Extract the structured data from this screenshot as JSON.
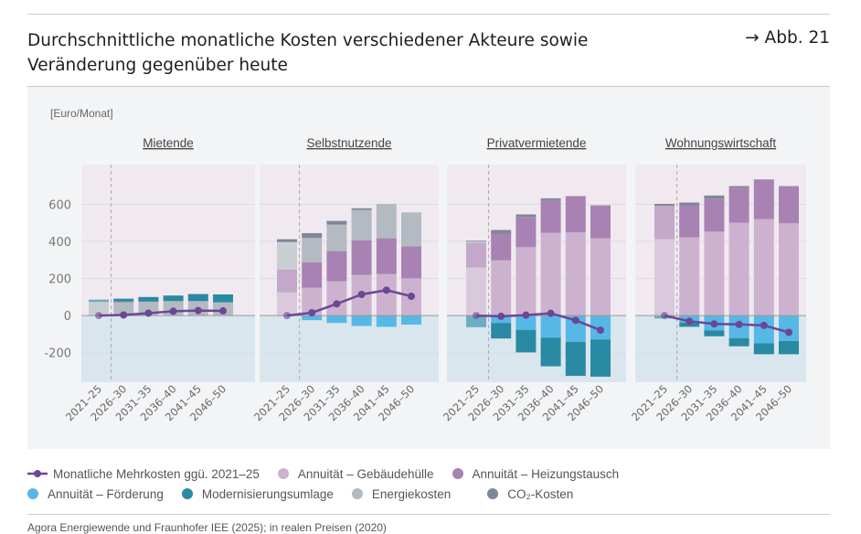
{
  "header": {
    "title": "Durchschnittliche monatliche Kosten verschiedener Akteure sowie Veränderung gegenüber heute",
    "figure_ref": "→ Abb. 21"
  },
  "source": "Agora Energiewende und Fraunhofer IEE (2025); in realen Preisen (2020)",
  "colors": {
    "gebaeude": "#cdb2cf",
    "gebaeude_base": "#dac9dd",
    "heizung": "#a882b2",
    "heizung_base": "#c4a8c9",
    "foerderung": "#56b8e6",
    "modern": "#2a89a3",
    "modern_base": "#6aaebf",
    "energie": "#b3bac1",
    "energie_base": "#c9ced3",
    "co2": "#80869a",
    "line": "#6c4796",
    "bg_pos": "#f0eaf0",
    "bg_neg": "#dae6ee"
  },
  "legend": [
    {
      "key": "line",
      "label": "Monatliche Mehrkosten ggü. 2021–25"
    },
    {
      "key": "gebaeude",
      "label": "Annuität – Gebäudehülle"
    },
    {
      "key": "heizung",
      "label": "Annuität – Heizungstausch"
    },
    {
      "key": "foerderung",
      "label": "Annuität – Förderung"
    },
    {
      "key": "modern",
      "label": "Modernisierungsumlage"
    },
    {
      "key": "energie",
      "label": "Energiekosten"
    },
    {
      "key": "co2",
      "label": "CO₂-Kosten"
    }
  ],
  "chart_data": {
    "type": "bar",
    "stacked": true,
    "ylabel": "[Euro/Monat]",
    "ylim": [
      -360,
      815
    ],
    "yticks": [
      -200,
      0,
      200,
      400,
      600
    ],
    "grid": true,
    "legend_position": "bottom",
    "categories": [
      "2021–25",
      "2026–30",
      "2031–35",
      "2036–40",
      "2041–45",
      "2046–50"
    ],
    "panels": [
      {
        "title": "Mietende",
        "gebaeude": [
          0,
          0,
          0,
          0,
          0,
          0
        ],
        "heizung": [
          0,
          0,
          0,
          0,
          0,
          0
        ],
        "energie": [
          74,
          72,
          74,
          78,
          78,
          71
        ],
        "co2": [
          0,
          4,
          3,
          0,
          0,
          0
        ],
        "modern": [
          12,
          15,
          23,
          30,
          38,
          43
        ],
        "foerderung": [
          0,
          0,
          0,
          0,
          0,
          0
        ],
        "line": [
          0,
          3,
          13,
          23,
          27,
          25
        ]
      },
      {
        "title": "Selbstnutzende",
        "gebaeude": [
          125,
          150,
          185,
          219,
          224,
          201
        ],
        "heizung": [
          124,
          137,
          163,
          188,
          193,
          172
        ],
        "energie": [
          148,
          132,
          143,
          163,
          186,
          184
        ],
        "co2": [
          15,
          26,
          20,
          9,
          0,
          0
        ],
        "modern": [
          0,
          0,
          0,
          0,
          0,
          0
        ],
        "foerderung": [
          -3,
          -25,
          -40,
          -56,
          -61,
          -49
        ],
        "line": [
          0,
          15,
          63,
          114,
          137,
          104
        ]
      },
      {
        "title": "Privatvermietende",
        "gebaeude": [
          259,
          298,
          369,
          447,
          450,
          417
        ],
        "heizung": [
          135,
          144,
          163,
          176,
          195,
          178
        ],
        "energie": [
          6,
          0,
          0,
          0,
          0,
          0
        ],
        "co2": [
          4,
          20,
          14,
          10,
          0,
          0
        ],
        "modern": [
          -63,
          -84,
          -122,
          -155,
          -184,
          -201
        ],
        "foerderung": [
          0,
          -40,
          -77,
          -119,
          -142,
          -129
        ],
        "line": [
          0,
          -4,
          2,
          12,
          -26,
          -79
        ]
      },
      {
        "title": "Wohnungswirtschaft",
        "gebaeude": [
          412,
          422,
          453,
          501,
          521,
          498
        ],
        "heizung": [
          181,
          171,
          178,
          190,
          214,
          201
        ],
        "energie": [
          0,
          0,
          0,
          0,
          0,
          0
        ],
        "co2": [
          10,
          17,
          17,
          8,
          0,
          0
        ],
        "modern": [
          -13,
          -23,
          -31,
          -44,
          -59,
          -72
        ],
        "foerderung": [
          -3,
          -38,
          -81,
          -122,
          -150,
          -137
        ],
        "line": [
          0,
          -31,
          -45,
          -48,
          -53,
          -91
        ]
      }
    ]
  }
}
